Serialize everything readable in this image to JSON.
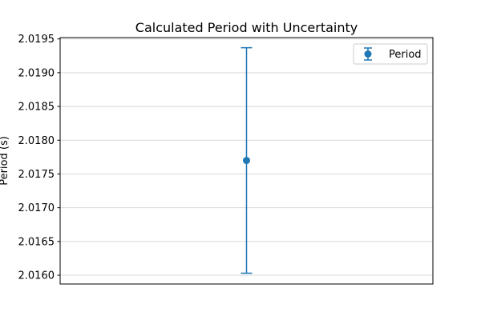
{
  "chart_data": {
    "type": "scatter",
    "title": "Calculated Period with Uncertainty",
    "xlabel": "",
    "ylabel": "Period (s)",
    "ylim": [
      2.01587,
      2.01952
    ],
    "xlim": [
      -1,
      1
    ],
    "yticks": [
      "2.0160",
      "2.0165",
      "2.0170",
      "2.0175",
      "2.0180",
      "2.0185",
      "2.0190",
      "2.0195"
    ],
    "grid": "y",
    "legend": "top-right",
    "series": [
      {
        "name": "Period",
        "x": [
          0
        ],
        "y": [
          2.0177
        ],
        "yerr": [
          0.00167
        ],
        "color": "#1f77b4"
      }
    ]
  }
}
